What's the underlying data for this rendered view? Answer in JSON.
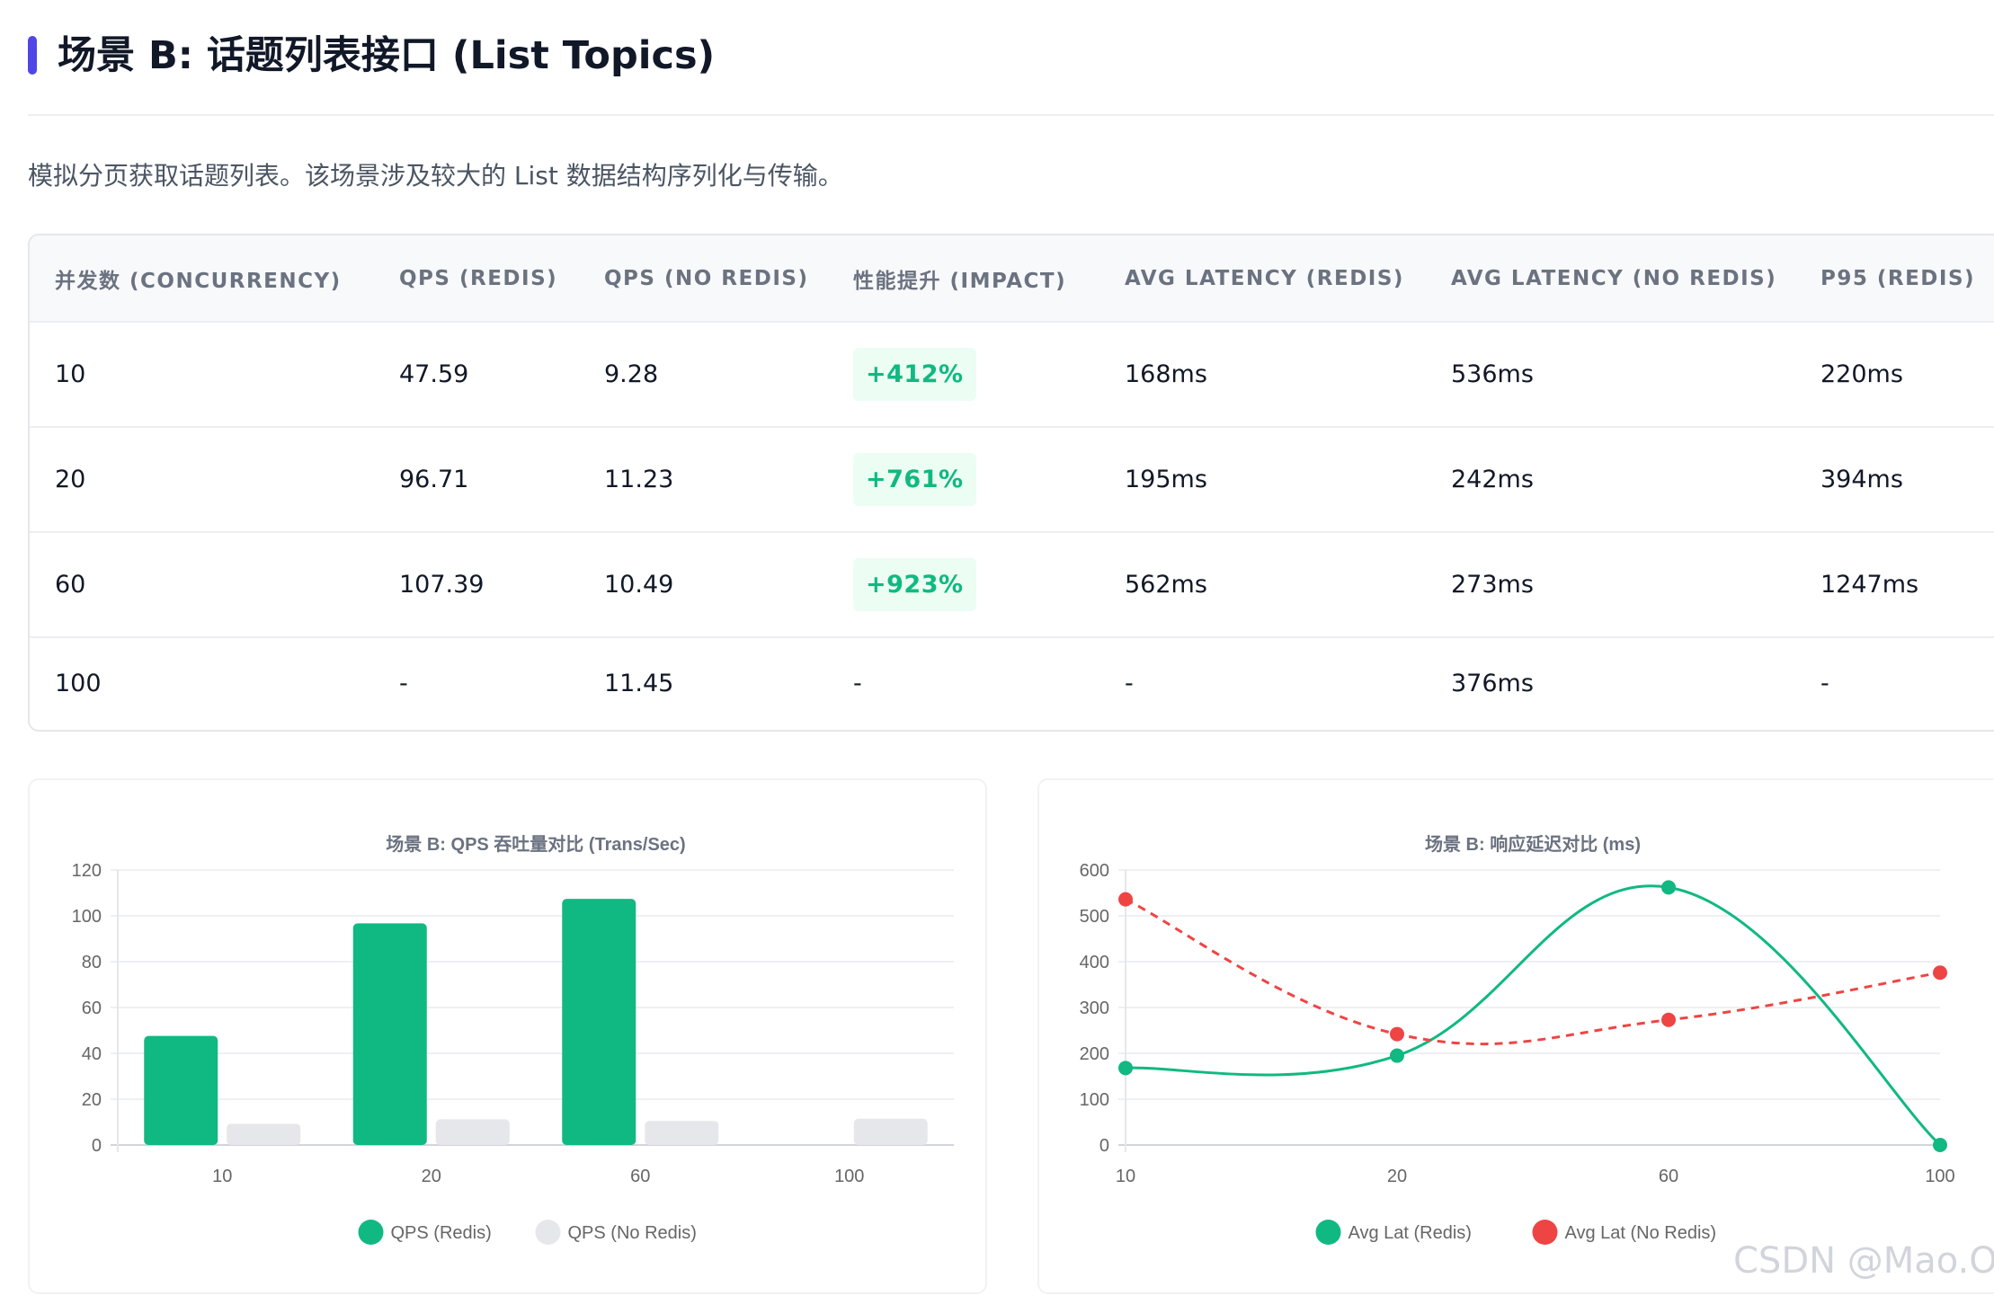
{
  "header": {
    "title": "场景 B: 话题列表接口 (List Topics)",
    "description": "模拟分页获取话题列表。该场景涉及较大的 List 数据结构序列化与传输。"
  },
  "table": {
    "columns": [
      "并发数 (CONCURRENCY)",
      "QPS (REDIS)",
      "QPS (NO REDIS)",
      "性能提升 (IMPACT)",
      "AVG LATENCY (REDIS)",
      "AVG LATENCY (NO REDIS)",
      "P95 (REDIS)"
    ],
    "rows": [
      {
        "concurrency": "10",
        "qps_redis": "47.59",
        "qps_no_redis": "9.28",
        "impact": "+412%",
        "avg_redis": "168ms",
        "avg_no_redis": "536ms",
        "p95_redis": "220ms"
      },
      {
        "concurrency": "20",
        "qps_redis": "96.71",
        "qps_no_redis": "11.23",
        "impact": "+761%",
        "avg_redis": "195ms",
        "avg_no_redis": "242ms",
        "p95_redis": "394ms"
      },
      {
        "concurrency": "60",
        "qps_redis": "107.39",
        "qps_no_redis": "10.49",
        "impact": "+923%",
        "avg_redis": "562ms",
        "avg_no_redis": "273ms",
        "p95_redis": "1247ms"
      },
      {
        "concurrency": "100",
        "qps_redis": "-",
        "qps_no_redis": "11.45",
        "impact": "-",
        "avg_redis": "-",
        "avg_no_redis": "376ms",
        "p95_redis": "-"
      }
    ]
  },
  "colors": {
    "accent": "#4f46e5",
    "redis": "#10b981",
    "no_redis_bar": "#e5e7eb",
    "no_redis_line": "#ef4444",
    "badge_bg": "#ecfdf3"
  },
  "chart_data": [
    {
      "type": "bar",
      "title": "场景 B: QPS 吞吐量对比 (Trans/Sec)",
      "categories": [
        "10",
        "20",
        "60",
        "100"
      ],
      "series": [
        {
          "name": "QPS (Redis)",
          "values": [
            47.59,
            96.71,
            107.39,
            0
          ]
        },
        {
          "name": "QPS (No Redis)",
          "values": [
            9.28,
            11.23,
            10.49,
            11.45
          ]
        }
      ],
      "ylim": [
        0,
        120
      ],
      "yticks": [
        "0",
        "20",
        "40",
        "60",
        "80",
        "100",
        "120"
      ],
      "grid": true,
      "legend": "bottom"
    },
    {
      "type": "line",
      "title": "场景 B: 响应延迟对比 (ms)",
      "categories": [
        "10",
        "20",
        "60",
        "100"
      ],
      "series": [
        {
          "name": "Avg Lat (Redis)",
          "values": [
            168,
            195,
            562,
            0
          ],
          "style": "solid"
        },
        {
          "name": "Avg Lat (No Redis)",
          "values": [
            536,
            242,
            273,
            376
          ],
          "style": "dashed"
        }
      ],
      "ylim": [
        0,
        600
      ],
      "yticks": [
        "0",
        "100",
        "200",
        "300",
        "400",
        "500",
        "600"
      ],
      "grid": true,
      "legend": "bottom"
    }
  ],
  "watermark": "CSDN @Mao.O"
}
